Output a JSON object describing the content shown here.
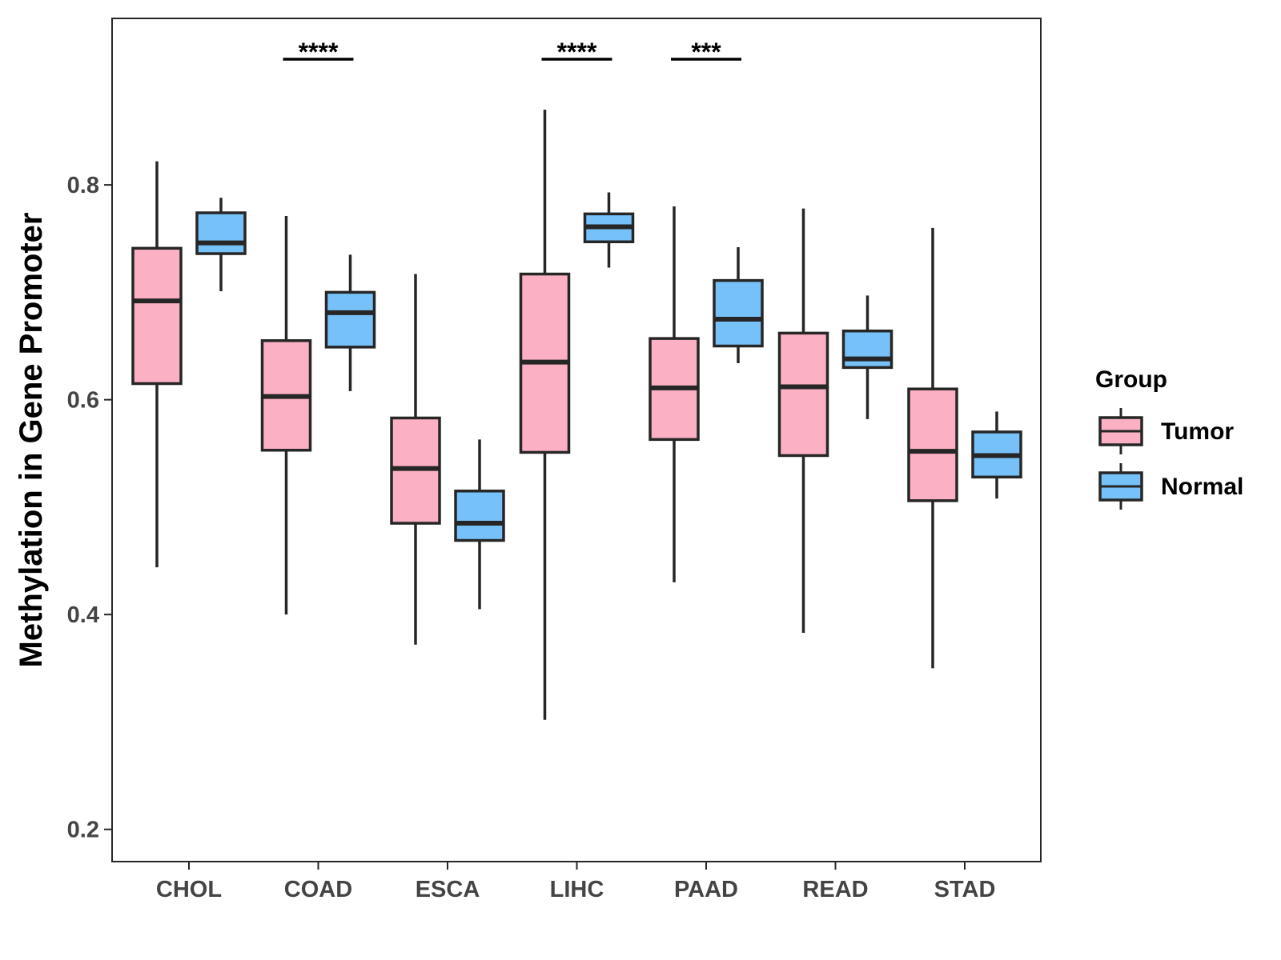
{
  "chart_data": {
    "type": "boxplot",
    "title": "",
    "xlabel": "",
    "ylabel": "Methylation in Gene Promoter",
    "ylim": [
      0.17,
      0.955
    ],
    "yticks": [
      0.2,
      0.4,
      0.6,
      0.8
    ],
    "ytick_labels": [
      "0.2",
      "0.4",
      "0.6",
      "0.8"
    ],
    "grid": false,
    "legend": {
      "title": "Group",
      "position": "right",
      "entries": [
        {
          "name": "Tumor",
          "color": "#FBB1C3"
        },
        {
          "name": "Normal",
          "color": "#77C1F9"
        }
      ]
    },
    "categories": [
      "CHOL",
      "COAD",
      "ESCA",
      "LIHC",
      "PAAD",
      "READ",
      "STAD"
    ],
    "series": [
      {
        "name": "Tumor",
        "color": "#FBB1C3",
        "boxes": [
          {
            "min": 0.444,
            "q1": 0.615,
            "median": 0.692,
            "q3": 0.741,
            "max": 0.822
          },
          {
            "min": 0.4,
            "q1": 0.553,
            "median": 0.603,
            "q3": 0.655,
            "max": 0.771
          },
          {
            "min": 0.372,
            "q1": 0.485,
            "median": 0.536,
            "q3": 0.583,
            "max": 0.717
          },
          {
            "min": 0.302,
            "q1": 0.551,
            "median": 0.635,
            "q3": 0.717,
            "max": 0.87
          },
          {
            "min": 0.43,
            "q1": 0.563,
            "median": 0.611,
            "q3": 0.657,
            "max": 0.78
          },
          {
            "min": 0.383,
            "q1": 0.548,
            "median": 0.612,
            "q3": 0.662,
            "max": 0.778
          },
          {
            "min": 0.35,
            "q1": 0.506,
            "median": 0.552,
            "q3": 0.61,
            "max": 0.76
          }
        ]
      },
      {
        "name": "Normal",
        "color": "#77C1F9",
        "boxes": [
          {
            "min": 0.701,
            "q1": 0.736,
            "median": 0.746,
            "q3": 0.774,
            "max": 0.788
          },
          {
            "min": 0.608,
            "q1": 0.649,
            "median": 0.681,
            "q3": 0.7,
            "max": 0.735
          },
          {
            "min": 0.405,
            "q1": 0.469,
            "median": 0.485,
            "q3": 0.515,
            "max": 0.563
          },
          {
            "min": 0.723,
            "q1": 0.747,
            "median": 0.761,
            "q3": 0.773,
            "max": 0.793
          },
          {
            "min": 0.634,
            "q1": 0.65,
            "median": 0.675,
            "q3": 0.711,
            "max": 0.742
          },
          {
            "min": 0.582,
            "q1": 0.63,
            "median": 0.638,
            "q3": 0.664,
            "max": 0.697
          },
          {
            "min": 0.508,
            "q1": 0.528,
            "median": 0.548,
            "q3": 0.57,
            "max": 0.589
          }
        ]
      }
    ],
    "significance": [
      {
        "category": "COAD",
        "label": "****"
      },
      {
        "category": "LIHC",
        "label": "****"
      },
      {
        "category": "PAAD",
        "label": "***"
      }
    ],
    "box_edge_color": "#262626",
    "panel_border_color": "#262626"
  }
}
